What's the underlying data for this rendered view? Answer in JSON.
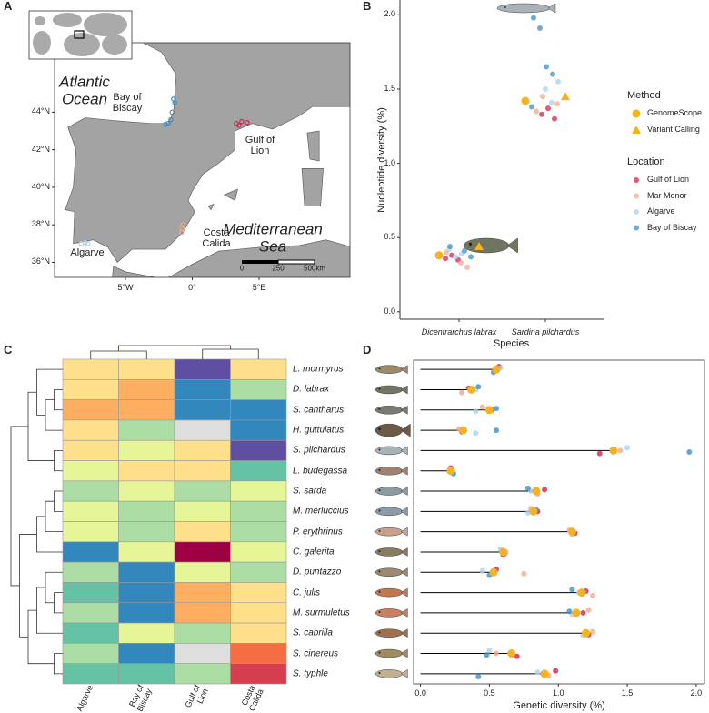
{
  "chart_data": [
    {
      "panel": "A",
      "type": "map",
      "labels": [
        "Atlantic\nOcean",
        "Bay of\nBiscay",
        "Gulf of\nLion",
        "Costa\nCalida",
        "Algarve",
        "Mediterranean\nSea"
      ],
      "xlim": [
        -10.3,
        11.8
      ],
      "ylim": [
        35.2,
        47.7
      ],
      "xticks": [
        {
          "value": -5,
          "label": "5°W"
        },
        {
          "value": 0,
          "label": "0°"
        },
        {
          "value": 5,
          "label": "5°E"
        }
      ],
      "yticks": [
        {
          "value": 36,
          "label": "36°N"
        },
        {
          "value": 38,
          "label": "38°N"
        },
        {
          "value": 40,
          "label": "40°N"
        },
        {
          "value": 42,
          "label": "42°N"
        },
        {
          "value": 44,
          "label": "44°N"
        }
      ],
      "scale": {
        "ticks": [
          0,
          250,
          {
            "value": 500,
            "label": "500km"
          }
        ]
      },
      "land_color": "#a3a3a3"
    },
    {
      "panel": "B",
      "type": "scatter",
      "categories": [
        "Dicentrarchus labrax",
        "Sardina pilchardus"
      ],
      "xlabel": "Species",
      "ylabel": "Nucleotide diversity (%)",
      "ylim": [
        -0.05,
        2.1
      ],
      "yticks": [
        {
          "value": 0,
          "label": "0.0"
        },
        0.5,
        {
          "value": 1,
          "label": "1.0"
        },
        1.5,
        {
          "value": 2,
          "label": "2.0"
        }
      ],
      "methods": {
        "title": "Method",
        "series": [
          {
            "name": "GenomeScope",
            "marker": "circle",
            "color": "#f5b324",
            "values": [
              0.38,
              1.42
            ]
          },
          {
            "name": "Variant Calling",
            "marker": "triangle",
            "color": "#f5b324",
            "values": [
              0.44,
              1.45
            ]
          }
        ]
      },
      "locations": {
        "title": "Location",
        "series": [
          {
            "name": "Gulf of Lion",
            "color": "#d6204e",
            "values": [
              [
                0.36,
                0.38,
                0.35
              ],
              [
                1.33,
                1.37,
                1.3
              ]
            ]
          },
          {
            "name": "Mar Menor",
            "color": "#f4a98a",
            "values": [
              [
                0.33,
                0.3,
                0.4
              ],
              [
                1.4,
                1.35,
                1.45
              ]
            ]
          },
          {
            "name": "Algarve",
            "color": "#a9d1ec",
            "values": [
              [
                0.42,
                0.37,
                0.39
              ],
              [
                1.5,
                1.41,
                1.55
              ]
            ]
          },
          {
            "name": "Bay of Biscay",
            "color": "#3d8fc6",
            "values": [
              [
                0.41,
                0.37,
                0.44
              ],
              [
                1.98,
                1.91,
                1.65,
                1.6,
                1.38
              ]
            ]
          }
        ]
      }
    },
    {
      "panel": "C",
      "type": "heatmap",
      "columns": [
        "Algarve",
        "Bay of\nBiscay",
        "Gulf of\nLion",
        "Costa\nCalida"
      ],
      "rows": [
        "L. mormyrus",
        "D. labrax",
        "S. cantharus",
        "H. guttulatus",
        "S. pilchardus",
        "L. budegassa",
        "S. sarda",
        "M. merluccius",
        "P. erythrinus",
        "C. galerita",
        "D. puntazzo",
        "C. julis",
        "M. surmuletus",
        "S. cabrilla",
        "S. cinereus",
        "S. typhle"
      ],
      "values": [
        [
          4,
          4,
          9,
          4
        ],
        [
          4,
          3,
          8,
          6
        ],
        [
          3,
          3,
          8,
          8
        ],
        [
          4,
          6,
          null,
          8
        ],
        [
          4,
          5,
          4,
          9
        ],
        [
          5,
          4,
          4,
          7
        ],
        [
          6,
          5,
          6,
          5
        ],
        [
          5,
          6,
          5,
          6
        ],
        [
          5,
          6,
          4,
          6
        ],
        [
          8,
          5,
          0,
          5
        ],
        [
          6,
          8,
          5,
          6
        ],
        [
          7,
          8,
          3,
          4
        ],
        [
          6,
          8,
          3,
          4
        ],
        [
          7,
          5,
          6,
          4
        ],
        [
          6,
          8,
          null,
          2
        ],
        [
          7,
          7,
          6,
          1
        ]
      ],
      "colormap": [
        "#9e0142",
        "#d53e4f",
        "#f46d43",
        "#fdae61",
        "#fee08b",
        "#e6f598",
        "#abdda4",
        "#66c2a5",
        "#3288bd",
        "#5e4fa2"
      ],
      "na_color": "#dedede"
    },
    {
      "panel": "D",
      "type": "lollipop",
      "xlabel": "Genetic diversity (%)",
      "xlim": [
        -0.05,
        2.06
      ],
      "xticks": [
        {
          "value": 0,
          "label": "0.0"
        },
        0.5,
        {
          "value": 1,
          "label": "1.0"
        },
        1.5,
        {
          "value": 2,
          "label": "2.0"
        }
      ],
      "color": "#f5b324",
      "values": [
        0.55,
        0.37,
        0.5,
        0.31,
        1.4,
        0.22,
        0.84,
        0.82,
        1.1,
        0.6,
        0.53,
        1.17,
        1.13,
        1.2,
        0.66,
        0.9
      ],
      "series": [
        {
          "color": "#d6204e",
          "values": [
            0.57,
            0.35,
            0.52,
            0.3,
            1.3,
            0.22,
            0.9,
            0.85,
            1.12,
            0.6,
            0.55,
            1.2,
            1.18,
            1.22,
            0.7,
            0.98
          ]
        },
        {
          "color": "#f4a98a",
          "values": [
            0.55,
            0.3,
            0.45,
            0.28,
            1.45,
            0.23,
            0.85,
            0.8,
            1.08,
            0.62,
            0.75,
            1.25,
            1.22,
            1.25,
            0.55,
            0.93
          ]
        },
        {
          "color": "#a9d1ec",
          "values": [
            0.58,
            0.4,
            0.4,
            0.4,
            1.5,
            0.21,
            0.8,
            0.78,
            1.1,
            0.58,
            0.45,
            1.15,
            1.1,
            1.18,
            0.5,
            0.85
          ]
        },
        {
          "color": "#3d8fc6",
          "values": [
            0.53,
            0.42,
            0.55,
            0.55,
            1.95,
            0.24,
            0.78,
            0.84,
            1.11,
            0.61,
            0.5,
            1.1,
            1.08,
            1.2,
            0.48,
            0.42
          ]
        }
      ]
    }
  ]
}
